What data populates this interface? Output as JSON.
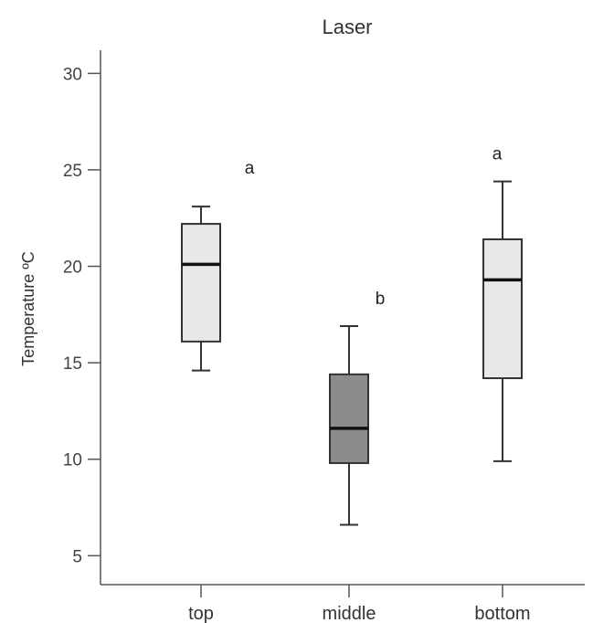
{
  "chart_data": {
    "type": "boxplot",
    "title": "Laser",
    "xlabel": "",
    "ylabel": "Temperature ºC",
    "ylim": [
      3.5,
      31.2
    ],
    "yticks": [
      5,
      10,
      15,
      20,
      25,
      30
    ],
    "grid": false,
    "categories": [
      "top",
      "middle",
      "bottom"
    ],
    "boxes": [
      {
        "category": "top",
        "min": 14.6,
        "q1": 16.1,
        "median": 20.1,
        "q3": 22.2,
        "max": 23.1,
        "fill": "#e8e8e8",
        "letter": "a"
      },
      {
        "category": "middle",
        "min": 6.6,
        "q1": 9.8,
        "median": 11.6,
        "q3": 14.4,
        "max": 16.9,
        "fill": "#8c8c8c",
        "letter": "b"
      },
      {
        "category": "bottom",
        "min": 9.9,
        "q1": 14.2,
        "median": 19.3,
        "q3": 21.4,
        "max": 24.4,
        "fill": "#e8e8e8",
        "letter": "a"
      }
    ]
  }
}
